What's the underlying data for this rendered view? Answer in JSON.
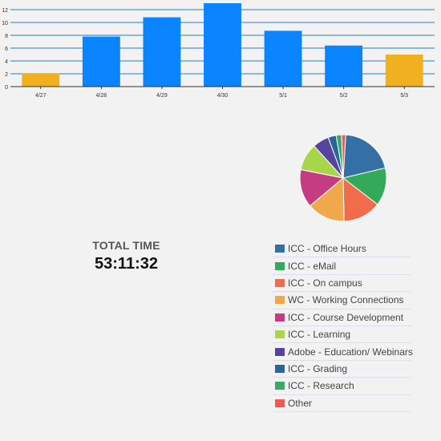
{
  "chart_data": [
    {
      "type": "bar",
      "categories": [
        "4/27",
        "4/28",
        "4/29",
        "4/30",
        "5/1",
        "5/2",
        "5/3"
      ],
      "values": [
        2.1,
        7.8,
        10.8,
        13.0,
        8.7,
        6.4,
        5.0
      ],
      "highlight": [
        true,
        false,
        false,
        false,
        false,
        false,
        true
      ],
      "yticks": [
        0,
        2,
        4,
        6,
        8,
        10,
        12
      ],
      "ylim": [
        0,
        13
      ],
      "grid": true,
      "colors": {
        "bar": "#0a84ff",
        "highlight": "#f0b020",
        "grid": "#1d7fd0"
      }
    },
    {
      "type": "pie",
      "values": [
        20,
        14,
        14,
        14,
        14,
        10,
        6,
        3,
        2,
        1.5
      ],
      "colors": [
        "#346fa5",
        "#33a95a",
        "#f06c4b",
        "#f0a84b",
        "#c53c82",
        "#a8d64b",
        "#56449f",
        "#2b6595",
        "#3aa968",
        "#f05a50"
      ]
    }
  ],
  "total": {
    "label": "TOTAL TIME",
    "value": "53:11:32"
  },
  "legend": [
    {
      "label": "ICC - Office Hours",
      "color": "#346fa5"
    },
    {
      "label": "ICC - eMail",
      "color": "#33a95a"
    },
    {
      "label": "ICC - On campus",
      "color": "#f06c4b"
    },
    {
      "label": "WC - Working Connections",
      "color": "#f0a84b"
    },
    {
      "label": "ICC - Course Development",
      "color": "#c53c82"
    },
    {
      "label": "ICC - Learning",
      "color": "#a8d64b"
    },
    {
      "label": "Adobe - Education/ Webinars",
      "color": "#56449f"
    },
    {
      "label": "ICC - Grading",
      "color": "#2b6595"
    },
    {
      "label": "ICC - Research",
      "color": "#3aa968"
    },
    {
      "label": "Other",
      "color": "#f05a50"
    }
  ]
}
